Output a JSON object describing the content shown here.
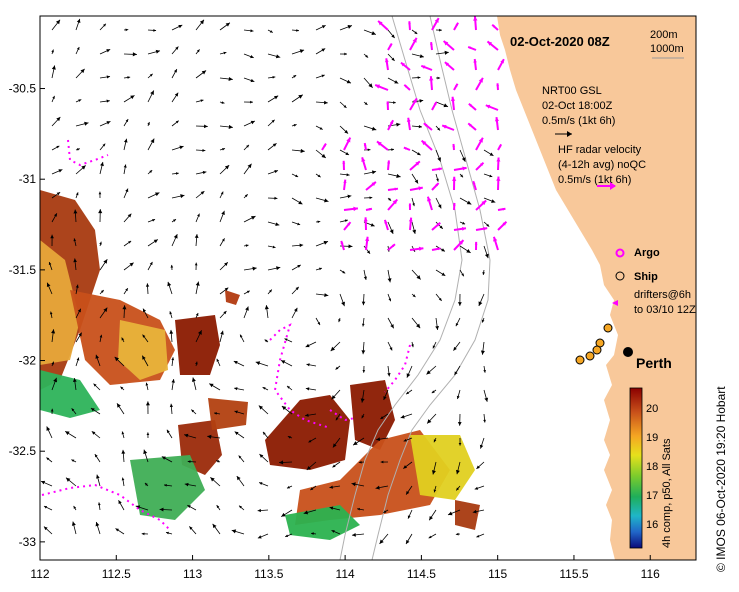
{
  "map": {
    "title": "02-Oct-2020 08Z",
    "x_ticks": [
      "112",
      "112.5",
      "113",
      "113.5",
      "114",
      "114.5",
      "115",
      "115.5",
      "116"
    ],
    "y_ticks": [
      "-30.5",
      "-31",
      "-31.5",
      "-32",
      "-32.5",
      "-33"
    ],
    "x_range": [
      112,
      116.3
    ],
    "y_range": [
      -33.1,
      -30.1
    ],
    "land_color": "#f8c89a",
    "ocean_color": "#ffffff",
    "arrow_color_model": "#000000",
    "arrow_color_radar": "#ff00ff",
    "isobaths": {
      "label_1": "200m",
      "label_2": "1000m"
    }
  },
  "legend": {
    "model_name": "NRT00 GSL",
    "model_time": "02-Oct 18:00Z",
    "model_scale": "0.5m/s (1kt 6h)",
    "radar_line1": "HF radar velocity",
    "radar_line2": "(4-12h avg) noQC",
    "radar_scale": "0.5m/s (1kt 6h)",
    "argo_label": "Argo",
    "ship_label": "Ship",
    "drifters_line1": "drifters@6h",
    "drifters_line2": "to 03/10 12Z"
  },
  "places": {
    "city": "Perth"
  },
  "colorbar": {
    "ticks": [
      "20",
      "19",
      "18",
      "17",
      "16"
    ],
    "label": "4h comp, p50, All Sats"
  },
  "credit": "© IMOS 06-Oct-2020 19:20 Hobart"
}
